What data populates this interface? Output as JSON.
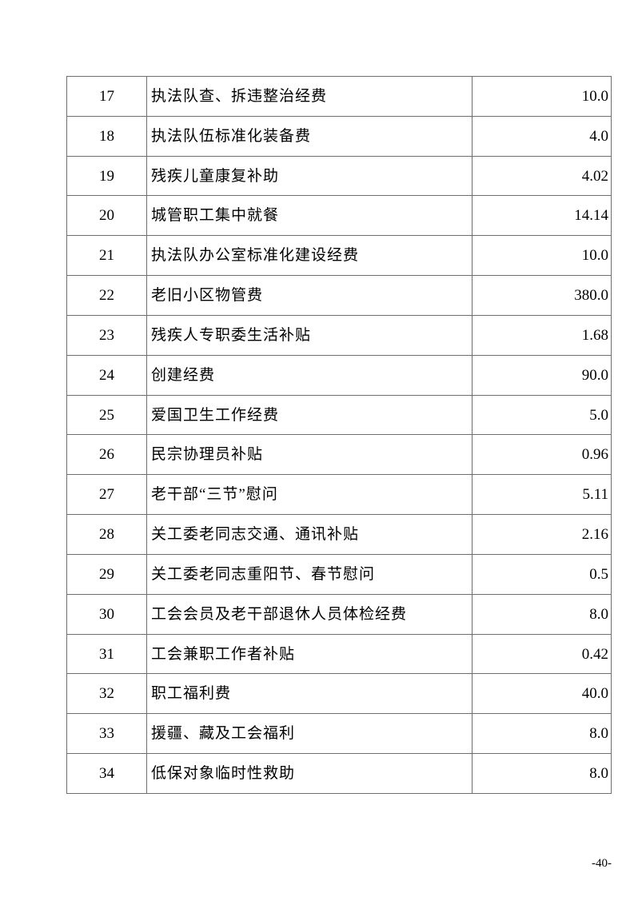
{
  "page": {
    "footer_page_number": "-40-"
  },
  "colors": {
    "border": "#6e6e6e",
    "text": "#000000",
    "background": "#ffffff"
  },
  "table": {
    "columns": [
      "index",
      "item",
      "amount"
    ],
    "rows": [
      {
        "index": "17",
        "item": "执法队查、拆违整治经费",
        "amount": "10.0"
      },
      {
        "index": "18",
        "item": "执法队伍标准化装备费",
        "amount": "4.0"
      },
      {
        "index": "19",
        "item": "残疾儿童康复补助",
        "amount": "4.02"
      },
      {
        "index": "20",
        "item": "城管职工集中就餐",
        "amount": "14.14"
      },
      {
        "index": "21",
        "item": "执法队办公室标准化建设经费",
        "amount": "10.0"
      },
      {
        "index": "22",
        "item": "老旧小区物管费",
        "amount": "380.0"
      },
      {
        "index": "23",
        "item": "残疾人专职委生活补贴",
        "amount": "1.68"
      },
      {
        "index": "24",
        "item": "创建经费",
        "amount": "90.0"
      },
      {
        "index": "25",
        "item": "爱国卫生工作经费",
        "amount": "5.0"
      },
      {
        "index": "26",
        "item": "民宗协理员补贴",
        "amount": "0.96"
      },
      {
        "index": "27",
        "item": "老干部“三节”慰问",
        "amount": "5.11"
      },
      {
        "index": "28",
        "item": "关工委老同志交通、通讯补贴",
        "amount": "2.16"
      },
      {
        "index": "29",
        "item": "关工委老同志重阳节、春节慰问",
        "amount": "0.5"
      },
      {
        "index": "30",
        "item": "工会会员及老干部退休人员体检经费",
        "amount": "8.0"
      },
      {
        "index": "31",
        "item": "工会兼职工作者补贴",
        "amount": "0.42"
      },
      {
        "index": "32",
        "item": "职工福利费",
        "amount": "40.0"
      },
      {
        "index": "33",
        "item": "援疆、藏及工会福利",
        "amount": "8.0"
      },
      {
        "index": "34",
        "item": "低保对象临时性救助",
        "amount": "8.0"
      }
    ]
  }
}
